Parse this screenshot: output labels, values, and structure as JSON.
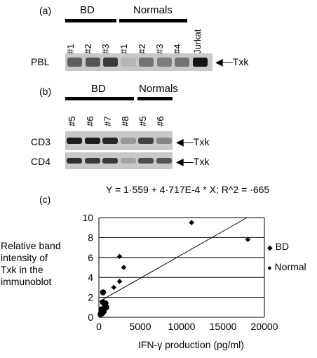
{
  "panel_a": {
    "label": "(a)",
    "groups": [
      "BD",
      "Normals"
    ],
    "lanes": [
      "#1",
      "#2",
      "#3",
      "#1",
      "#2",
      "#3",
      "#4",
      "Jurkat"
    ],
    "row_label": "PBL",
    "band_label": "Txk",
    "band_intensity": [
      0.55,
      0.6,
      0.75,
      0.1,
      0.45,
      0.4,
      0.45,
      0.95
    ]
  },
  "panel_b": {
    "label": "(b)",
    "groups": [
      "BD",
      "Normals"
    ],
    "lanes": [
      "#5",
      "#6",
      "#7",
      "#8",
      "#5",
      "#6"
    ],
    "rows": [
      {
        "label": "CD3",
        "band_label": "Txk",
        "intensity": [
          0.9,
          0.9,
          0.85,
          0.25,
          0.7,
          0.35
        ]
      },
      {
        "label": "CD4",
        "band_label": "Txk",
        "intensity": [
          0.8,
          0.75,
          0.75,
          0.2,
          0.65,
          0.6
        ]
      }
    ]
  },
  "panel_c": {
    "label": "(c)",
    "equation": "Y = 1·559 + 4·717E-4 * X; R^2 = ·665",
    "ylabel_lines": [
      "Relative band",
      "intensity of",
      "Txk in the",
      "immunoblot"
    ],
    "xlabel": "IFN-γ production (pg/ml)",
    "legend": [
      {
        "label": "BD",
        "marker": "diamond"
      },
      {
        "label": "Normal",
        "marker": "circle"
      }
    ]
  },
  "chart_data": {
    "type": "scatter",
    "title": "Y = 1·559 + 4·717E-4 * X; R^2 = ·665",
    "xlabel": "IFN-γ production (pg/ml)",
    "ylabel": "Relative band intensity of Txk in the immunoblot",
    "xlim": [
      0,
      20000
    ],
    "ylim": [
      0,
      10
    ],
    "xticks": [
      "0",
      "5000",
      "10000",
      "15000",
      "20000"
    ],
    "yticks": [
      "0",
      "2",
      "4",
      "6",
      "8",
      "10"
    ],
    "grid": "horizontal",
    "legend_position": "right",
    "series": [
      {
        "name": "BD",
        "marker": "diamond",
        "x": [
          11200,
          18000,
          2500,
          3000,
          2500,
          1800
        ],
        "y": [
          9.5,
          7.8,
          6.1,
          5.0,
          3.6,
          3.0
        ]
      },
      {
        "name": "Normal",
        "marker": "circle",
        "x": [
          500,
          500,
          800,
          700,
          900,
          300,
          600,
          400,
          200
        ],
        "y": [
          2.5,
          1.5,
          1.4,
          1.0,
          1.0,
          0.8,
          0.6,
          0.4,
          0.3
        ]
      }
    ],
    "fit_line": {
      "intercept": 1.559,
      "slope": 0.0004717
    }
  }
}
